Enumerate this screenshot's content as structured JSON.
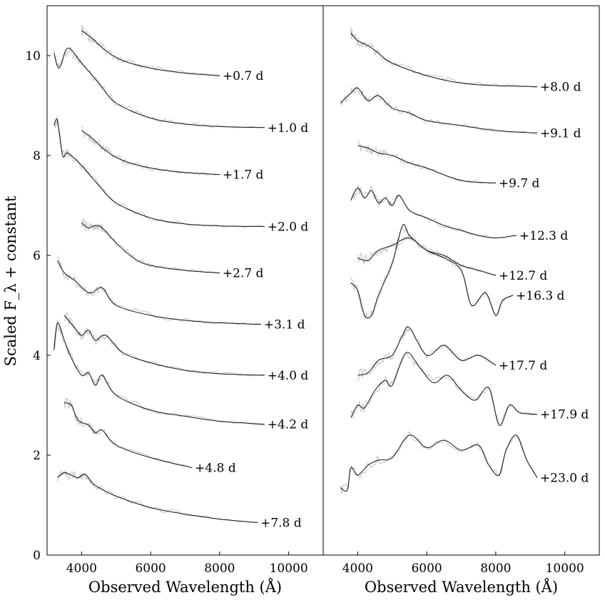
{
  "chart_data": [
    {
      "type": "line",
      "panel": "left",
      "xlabel": "Observed Wavelength (Å)",
      "ylabel": "Scaled F_λ + constant",
      "xlim": [
        3000,
        11000
      ],
      "ylim": [
        0,
        11
      ],
      "xticks": [
        4000,
        6000,
        8000,
        10000
      ],
      "yticks": [
        0,
        2,
        4,
        6,
        8,
        10
      ],
      "series": [
        {
          "name": "+0.7 d",
          "x": [
            4000,
            4300,
            4700,
            5200,
            6000,
            7000,
            8000
          ],
          "values": [
            10.5,
            10.35,
            10.1,
            9.9,
            9.75,
            9.65,
            9.6
          ]
        },
        {
          "name": "+1.0 d",
          "x": [
            3200,
            3350,
            3600,
            4000,
            4500,
            5000,
            6000,
            7000,
            8000,
            9300
          ],
          "values": [
            10.05,
            9.75,
            10.15,
            9.85,
            9.45,
            9.05,
            8.75,
            8.63,
            8.58,
            8.56
          ]
        },
        {
          "name": "+1.7 d",
          "x": [
            4000,
            4300,
            4700,
            5200,
            6000,
            7000,
            8000
          ],
          "values": [
            8.5,
            8.35,
            8.1,
            7.9,
            7.75,
            7.66,
            7.62
          ]
        },
        {
          "name": "+2.0 d",
          "x": [
            3200,
            3300,
            3450,
            3600,
            4000,
            4500,
            5000,
            6000,
            7000,
            8000,
            9300
          ],
          "values": [
            8.6,
            8.7,
            8.0,
            8.05,
            7.8,
            7.4,
            7.05,
            6.75,
            6.63,
            6.59,
            6.58
          ]
        },
        {
          "name": "+2.7 d",
          "x": [
            4000,
            4200,
            4400,
            4600,
            5000,
            5500,
            6000,
            7000,
            8000
          ],
          "values": [
            6.65,
            6.55,
            6.6,
            6.55,
            6.25,
            5.95,
            5.8,
            5.7,
            5.65
          ]
        },
        {
          "name": "+3.1 d",
          "x": [
            3300,
            3500,
            3800,
            4100,
            4300,
            4600,
            5000,
            6000,
            7000,
            8000,
            9200
          ],
          "values": [
            5.9,
            5.65,
            5.5,
            5.3,
            5.25,
            5.35,
            5.0,
            4.8,
            4.7,
            4.65,
            4.62
          ]
        },
        {
          "name": "+4.0 d",
          "x": [
            3500,
            3800,
            4000,
            4200,
            4400,
            4700,
            5200,
            6000,
            7000,
            8000,
            9300
          ],
          "values": [
            4.8,
            4.55,
            4.4,
            4.5,
            4.3,
            4.4,
            4.05,
            3.85,
            3.7,
            3.63,
            3.6
          ]
        },
        {
          "name": "+4.2 d",
          "x": [
            3200,
            3300,
            3500,
            3700,
            4000,
            4200,
            4400,
            4600,
            5000,
            6000,
            7000,
            8000,
            9300
          ],
          "values": [
            4.1,
            4.65,
            4.3,
            3.95,
            3.6,
            3.65,
            3.4,
            3.6,
            3.2,
            2.9,
            2.78,
            2.68,
            2.62
          ]
        },
        {
          "name": "+4.8 d",
          "x": [
            3500,
            3700,
            3900,
            4200,
            4400,
            4600,
            5000,
            6000,
            7200
          ],
          "values": [
            3.05,
            3.0,
            2.7,
            2.6,
            2.45,
            2.5,
            2.2,
            1.95,
            1.75
          ]
        },
        {
          "name": "+7.8 d",
          "x": [
            3300,
            3500,
            3700,
            3900,
            4100,
            4300,
            4500,
            5000,
            6000,
            7000,
            8000,
            9100
          ],
          "values": [
            1.55,
            1.65,
            1.6,
            1.55,
            1.62,
            1.45,
            1.35,
            1.18,
            0.95,
            0.82,
            0.72,
            0.65
          ]
        }
      ]
    },
    {
      "type": "line",
      "panel": "right",
      "xlabel": "Observed Wavelength (Å)",
      "xlim": [
        3000,
        11000
      ],
      "ylim": [
        0,
        11
      ],
      "xticks": [
        4000,
        6000,
        8000,
        10000
      ],
      "series": [
        {
          "name": "+8.0 d",
          "x": [
            3800,
            4000,
            4300,
            4600,
            5000,
            6000,
            7000,
            8000,
            9200
          ],
          "values": [
            10.45,
            10.3,
            10.2,
            10.05,
            9.85,
            9.6,
            9.45,
            9.4,
            9.38
          ]
        },
        {
          "name": "+9.1 d",
          "x": [
            3500,
            3800,
            4000,
            4300,
            4600,
            5000,
            5500,
            6000,
            7000,
            8000,
            9200
          ],
          "values": [
            9.05,
            9.25,
            9.35,
            9.1,
            9.2,
            8.95,
            8.85,
            8.7,
            8.6,
            8.5,
            8.45
          ]
        },
        {
          "name": "+9.7 d",
          "x": [
            4000,
            4300,
            4600,
            5000,
            5500,
            6000,
            7000,
            8000
          ],
          "values": [
            8.2,
            8.15,
            8.05,
            8.0,
            7.85,
            7.75,
            7.5,
            7.45
          ]
        },
        {
          "name": "+12.3 d",
          "x": [
            3800,
            4000,
            4200,
            4400,
            4600,
            4800,
            5000,
            5200,
            5500,
            6000,
            6500,
            7000,
            7500,
            8000,
            8600
          ],
          "values": [
            7.1,
            7.35,
            7.15,
            7.3,
            7.05,
            7.15,
            7.0,
            7.2,
            6.9,
            6.75,
            6.6,
            6.5,
            6.4,
            6.35,
            6.4
          ]
        },
        {
          "name": "+12.7 d",
          "x": [
            4000,
            4300,
            4600,
            5000,
            5500,
            6000,
            6500,
            7000,
            7500,
            8000
          ],
          "values": [
            5.95,
            5.9,
            6.1,
            6.2,
            6.35,
            6.1,
            6.0,
            5.8,
            5.7,
            5.6
          ]
        },
        {
          "name": "+16.3 d",
          "x": [
            3800,
            4000,
            4200,
            4400,
            4600,
            5000,
            5300,
            5500,
            6000,
            6500,
            7000,
            7300,
            7700,
            8000,
            8200,
            8500
          ],
          "values": [
            5.45,
            5.3,
            4.8,
            4.8,
            5.2,
            5.85,
            6.6,
            6.4,
            6.1,
            5.95,
            5.7,
            5.0,
            5.25,
            4.8,
            5.1,
            5.2
          ]
        },
        {
          "name": "+17.7 d",
          "x": [
            4000,
            4300,
            4600,
            5000,
            5300,
            5500,
            6000,
            6500,
            7000,
            7500,
            8000
          ],
          "values": [
            3.6,
            3.65,
            3.9,
            4.0,
            4.4,
            4.55,
            4.0,
            4.2,
            3.9,
            4.0,
            3.8
          ]
        },
        {
          "name": "+17.9 d",
          "x": [
            3800,
            4000,
            4200,
            4500,
            4800,
            5000,
            5400,
            5800,
            6200,
            6600,
            7000,
            7400,
            7800,
            8100,
            8400,
            8700,
            9200
          ],
          "values": [
            2.75,
            3.0,
            2.95,
            3.3,
            3.5,
            3.4,
            4.05,
            3.75,
            3.45,
            3.6,
            3.3,
            3.1,
            3.35,
            2.6,
            3.0,
            2.85,
            2.82
          ]
        },
        {
          "name": "+23.0 d",
          "x": [
            3500,
            3700,
            3800,
            4000,
            4300,
            4600,
            5000,
            5500,
            6000,
            6500,
            7000,
            7500,
            7800,
            8100,
            8300,
            8600,
            8900,
            9200
          ],
          "values": [
            1.35,
            1.3,
            1.75,
            1.6,
            1.8,
            1.9,
            1.95,
            2.4,
            2.15,
            2.3,
            2.1,
            2.2,
            1.8,
            1.6,
            2.1,
            2.4,
            1.9,
            1.55
          ]
        }
      ]
    }
  ]
}
